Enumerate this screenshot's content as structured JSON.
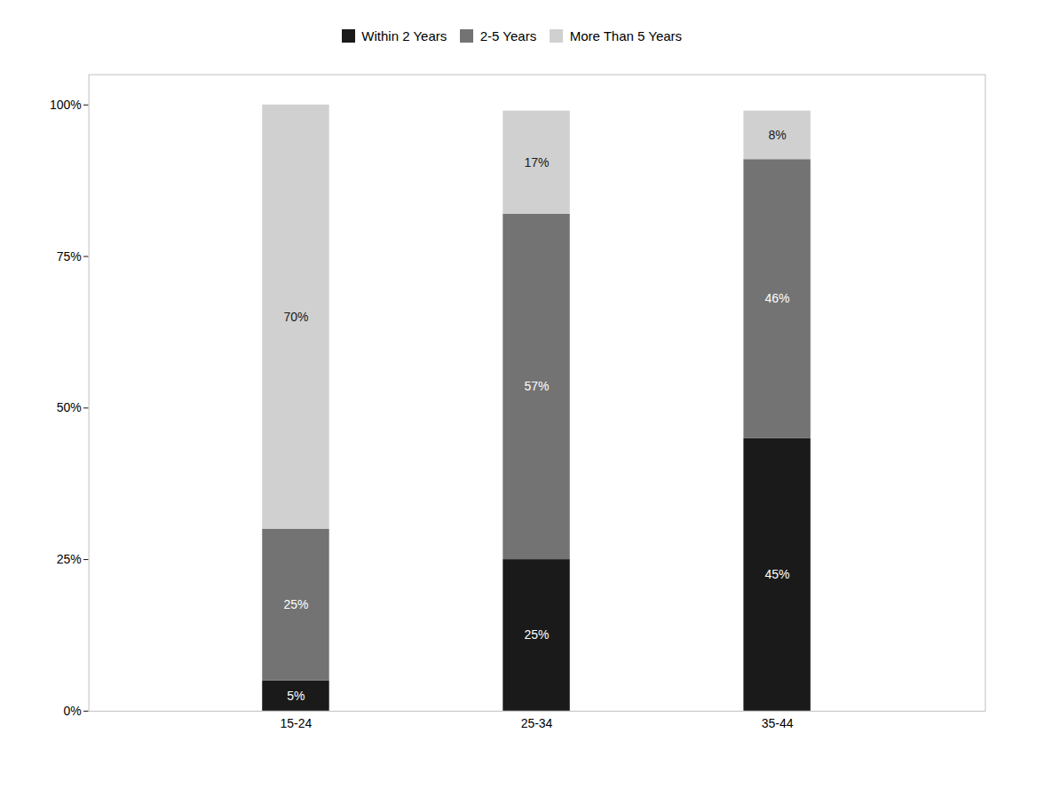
{
  "chart_data": {
    "type": "bar",
    "stacked": true,
    "categories": [
      "15-24",
      "25-34",
      "35-44"
    ],
    "series": [
      {
        "name": "Within 2 Years",
        "color": "#1a1a1a",
        "values": [
          5,
          25,
          45
        ],
        "value_labels": [
          "5%",
          "25%",
          "45%"
        ]
      },
      {
        "name": "2-5 Years",
        "color": "#737373",
        "values": [
          25,
          57,
          46
        ],
        "value_labels": [
          "25%",
          "57%",
          "46%"
        ]
      },
      {
        "name": "More Than 5 Years",
        "color": "#d0d0d0",
        "values": [
          70,
          17,
          8
        ],
        "value_labels": [
          "70%",
          "17%",
          "8%"
        ]
      }
    ],
    "ylim": [
      0,
      105
    ],
    "yticks": [
      {
        "value": 0,
        "label": "0%"
      },
      {
        "value": 25,
        "label": "25%"
      },
      {
        "value": 50,
        "label": "50%"
      },
      {
        "value": 75,
        "label": "75%"
      },
      {
        "value": 100,
        "label": "100%"
      }
    ],
    "grid": false,
    "legend": "top",
    "data_labels": true
  }
}
